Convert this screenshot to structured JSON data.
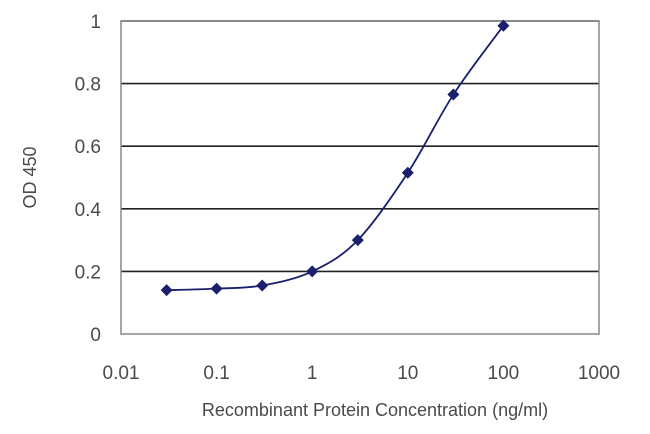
{
  "chart_data": {
    "type": "scatter",
    "title": "",
    "xlabel": "Recombinant Protein Concentration (ng/ml)",
    "ylabel": "OD 450",
    "xscale": "log",
    "xlim": [
      0.01,
      1000
    ],
    "ylim": [
      0,
      1
    ],
    "xticks": [
      0.01,
      0.1,
      1,
      10,
      100,
      1000
    ],
    "xtick_labels": [
      "0.01",
      "0.1",
      "1",
      "10",
      "100",
      "1000"
    ],
    "yticks": [
      0,
      0.2,
      0.4,
      0.6,
      0.8,
      1
    ],
    "ytick_labels": [
      "0",
      "0.2",
      "0.4",
      "0.6",
      "0.8",
      "1"
    ],
    "grid": "horizontal",
    "legend": "none",
    "series": [
      {
        "x": [
          0.03,
          0.1,
          0.3,
          1,
          3,
          10,
          30,
          100
        ],
        "y": [
          0.14,
          0.145,
          0.155,
          0.2,
          0.3,
          0.515,
          0.765,
          0.985
        ],
        "marker": "diamond",
        "line": "smooth"
      }
    ],
    "colors": {
      "series": "#1a1f6e",
      "grid": "#222222",
      "axis": "#888888",
      "text": "#4a4a4a"
    }
  }
}
